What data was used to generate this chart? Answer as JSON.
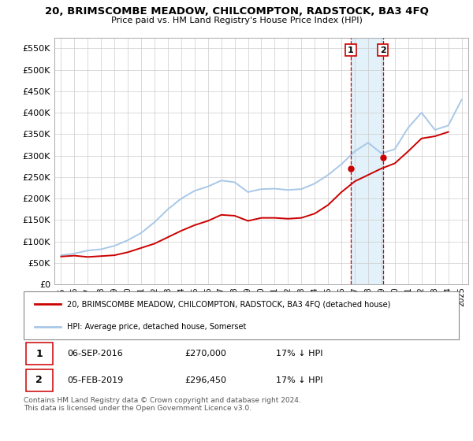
{
  "title": "20, BRIMSCOMBE MEADOW, CHILCOMPTON, RADSTOCK, BA3 4FQ",
  "subtitle": "Price paid vs. HM Land Registry's House Price Index (HPI)",
  "legend_line1": "20, BRIMSCOMBE MEADOW, CHILCOMPTON, RADSTOCK, BA3 4FQ (detached house)",
  "legend_line2": "HPI: Average price, detached house, Somerset",
  "sale1_label": "1",
  "sale1_date": "06-SEP-2016",
  "sale1_price": "£270,000",
  "sale1_hpi": "17% ↓ HPI",
  "sale2_label": "2",
  "sale2_date": "05-FEB-2019",
  "sale2_price": "£296,450",
  "sale2_hpi": "17% ↓ HPI",
  "footer": "Contains HM Land Registry data © Crown copyright and database right 2024.\nThis data is licensed under the Open Government Licence v3.0.",
  "hpi_color": "#a8c8e8",
  "price_color": "#cc0000",
  "vline_color": "#cc0000",
  "shade_color": "#d0e8f8",
  "ylim": [
    0,
    575000
  ],
  "yticks": [
    0,
    50000,
    100000,
    150000,
    200000,
    250000,
    300000,
    350000,
    400000,
    450000,
    500000,
    550000
  ],
  "hpi_years": [
    1995,
    1996,
    1997,
    1998,
    1999,
    2000,
    2001,
    2002,
    2003,
    2004,
    2005,
    2006,
    2007,
    2008,
    2009,
    2010,
    2011,
    2012,
    2013,
    2014,
    2015,
    2016,
    2017,
    2018,
    2019,
    2020,
    2021,
    2022,
    2023,
    2024,
    2025
  ],
  "hpi_values": [
    68000,
    72000,
    79000,
    82000,
    90000,
    103000,
    120000,
    145000,
    175000,
    200000,
    218000,
    228000,
    242000,
    238000,
    215000,
    222000,
    223000,
    220000,
    222000,
    235000,
    255000,
    280000,
    310000,
    330000,
    305000,
    315000,
    365000,
    400000,
    360000,
    370000,
    430000
  ],
  "price_years_x": [
    1995,
    1996,
    1997,
    1998,
    1999,
    2000,
    2001,
    2002,
    2003,
    2004,
    2005,
    2006,
    2007,
    2008,
    2009,
    2010,
    2011,
    2012,
    2013,
    2014,
    2015,
    2016,
    2017,
    2018,
    2019,
    2020,
    2021,
    2022,
    2023,
    2024
  ],
  "price_values": [
    65000,
    67000,
    64000,
    66000,
    68000,
    75000,
    85000,
    95000,
    110000,
    125000,
    138000,
    148000,
    162000,
    160000,
    148000,
    155000,
    155000,
    153000,
    155000,
    165000,
    185000,
    215000,
    240000,
    255000,
    270000,
    282000,
    310000,
    340000,
    345000,
    355000
  ],
  "sale1_x": 2016.7,
  "sale1_y": 270000,
  "sale2_x": 2019.1,
  "sale2_y": 296450,
  "vline1_x": 2016.7,
  "vline2_x": 2019.1,
  "shade_x1": 2016.7,
  "shade_x2": 2019.1,
  "xlim_left": 1994.5,
  "xlim_right": 2025.5
}
